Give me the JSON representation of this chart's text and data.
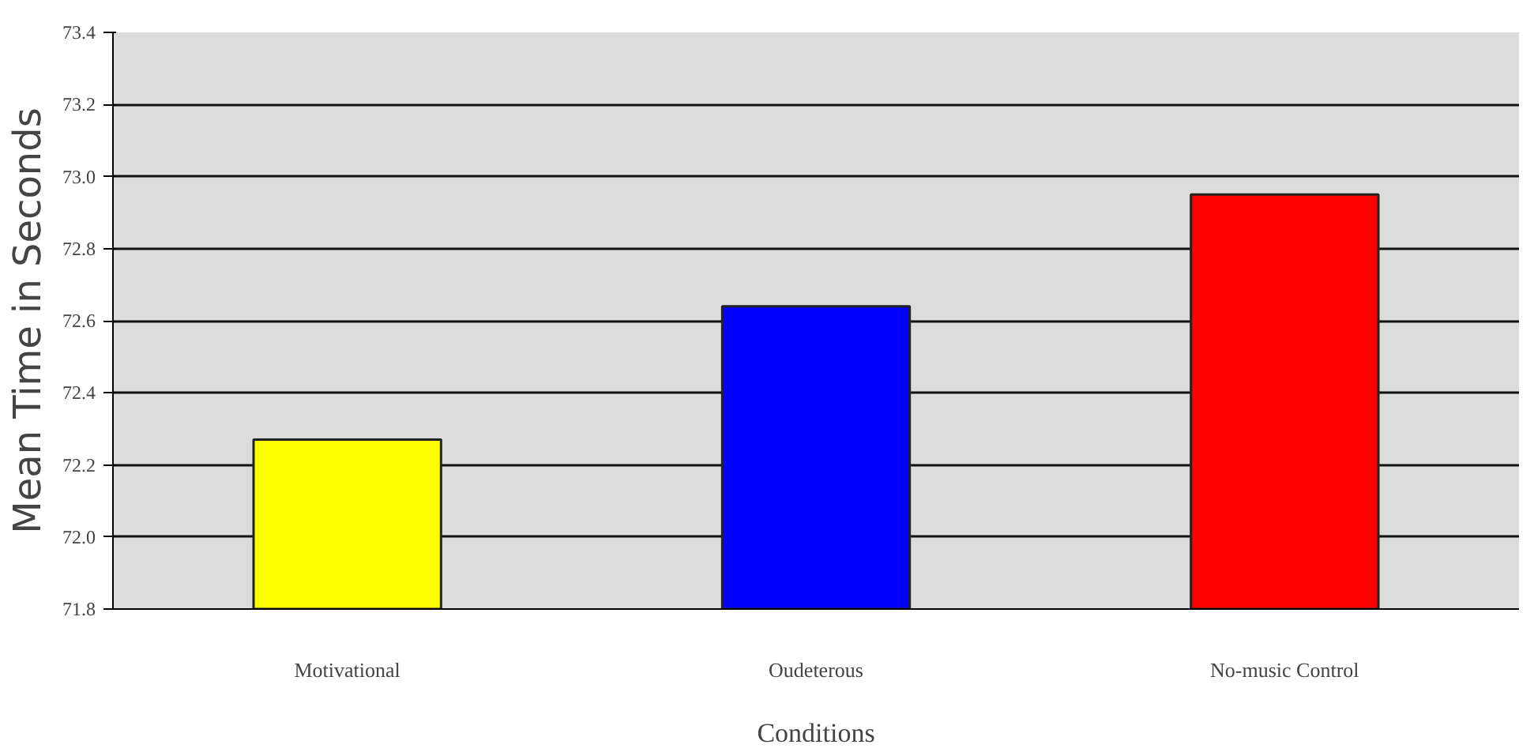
{
  "chart_data": {
    "type": "bar",
    "xlabel": "Conditions",
    "ylabel": "Mean Time in Seconds",
    "categories": [
      "Motivational",
      "Oudeterous",
      "No-music Control"
    ],
    "values": [
      72.27,
      72.64,
      72.95
    ],
    "colors": [
      "#ffff00",
      "#0000ff",
      "#ff0000"
    ],
    "ylim": [
      71.8,
      73.4
    ],
    "yticks": [
      {
        "value": 71.8,
        "label": "71.8"
      },
      {
        "value": 72.0,
        "label": "72.0"
      },
      {
        "value": 72.2,
        "label": "72.2"
      },
      {
        "value": 72.4,
        "label": "72.4"
      },
      {
        "value": 72.6,
        "label": "72.6"
      },
      {
        "value": 72.8,
        "label": "72.8"
      },
      {
        "value": 73.0,
        "label": "73.0"
      },
      {
        "value": 73.2,
        "label": "73.2"
      },
      {
        "value": 73.4,
        "label": "73.4"
      }
    ],
    "grid": "y"
  }
}
